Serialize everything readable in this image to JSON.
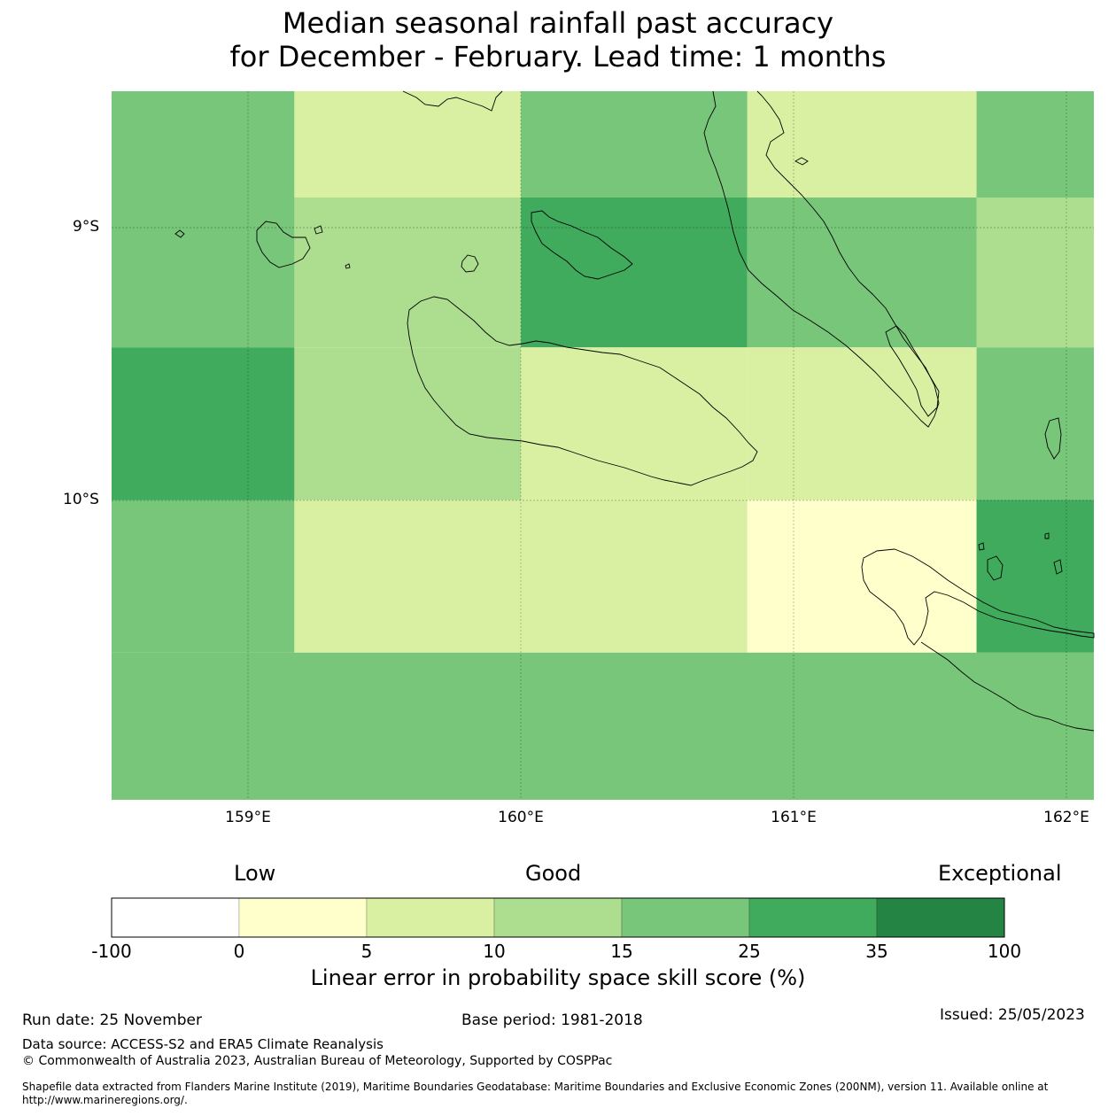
{
  "title": {
    "line1": "Median seasonal rainfall past accuracy",
    "line2": "for December - February. Lead time: 1 months"
  },
  "map": {
    "lat_labels": [
      "9°S",
      "10°S"
    ],
    "lon_labels": [
      "159°E",
      "160°E",
      "161°E",
      "162°E"
    ],
    "lon_range": [
      158.5,
      162.1
    ],
    "lat_range": [
      -8.5,
      -11.1
    ],
    "land_color": "none",
    "coast_color": "#000000",
    "grid_cells": [
      {
        "lon0": 158.5,
        "lon1": 159.17,
        "lat0": -8.5,
        "lat1": -8.89,
        "category": 4
      },
      {
        "lon0": 159.17,
        "lon1": 160.0,
        "lat0": -8.5,
        "lat1": -8.89,
        "category": 2
      },
      {
        "lon0": 160.0,
        "lon1": 160.83,
        "lat0": -8.5,
        "lat1": -8.89,
        "category": 4
      },
      {
        "lon0": 160.83,
        "lon1": 161.67,
        "lat0": -8.5,
        "lat1": -8.89,
        "category": 2
      },
      {
        "lon0": 161.67,
        "lon1": 162.1,
        "lat0": -8.5,
        "lat1": -8.89,
        "category": 4
      },
      {
        "lon0": 158.5,
        "lon1": 159.17,
        "lat0": -8.89,
        "lat1": -9.44,
        "category": 4
      },
      {
        "lon0": 159.17,
        "lon1": 160.0,
        "lat0": -8.89,
        "lat1": -9.44,
        "category": 3
      },
      {
        "lon0": 160.0,
        "lon1": 160.83,
        "lat0": -8.89,
        "lat1": -9.44,
        "category": 5
      },
      {
        "lon0": 160.83,
        "lon1": 161.67,
        "lat0": -8.89,
        "lat1": -9.44,
        "category": 4
      },
      {
        "lon0": 161.67,
        "lon1": 162.1,
        "lat0": -8.89,
        "lat1": -9.44,
        "category": 3
      },
      {
        "lon0": 158.5,
        "lon1": 159.17,
        "lat0": -9.44,
        "lat1": -10.0,
        "category": 5
      },
      {
        "lon0": 159.17,
        "lon1": 160.0,
        "lat0": -9.44,
        "lat1": -10.0,
        "category": 3
      },
      {
        "lon0": 160.0,
        "lon1": 160.83,
        "lat0": -9.44,
        "lat1": -10.0,
        "category": 2
      },
      {
        "lon0": 160.83,
        "lon1": 161.67,
        "lat0": -9.44,
        "lat1": -10.0,
        "category": 2
      },
      {
        "lon0": 161.67,
        "lon1": 162.1,
        "lat0": -9.44,
        "lat1": -10.0,
        "category": 4
      },
      {
        "lon0": 158.5,
        "lon1": 159.17,
        "lat0": -10.0,
        "lat1": -10.56,
        "category": 4
      },
      {
        "lon0": 159.17,
        "lon1": 160.0,
        "lat0": -10.0,
        "lat1": -10.56,
        "category": 2
      },
      {
        "lon0": 160.0,
        "lon1": 160.83,
        "lat0": -10.0,
        "lat1": -10.56,
        "category": 2
      },
      {
        "lon0": 160.83,
        "lon1": 161.67,
        "lat0": -10.0,
        "lat1": -10.56,
        "category": 1
      },
      {
        "lon0": 161.67,
        "lon1": 162.1,
        "lat0": -10.0,
        "lat1": -10.56,
        "category": 5
      },
      {
        "lon0": 158.5,
        "lon1": 162.1,
        "lat0": -10.56,
        "lat1": -11.1,
        "category": 4
      }
    ]
  },
  "legend": {
    "categories": [
      "Low",
      "Good",
      "Exceptional"
    ],
    "colors": [
      "#ffffff",
      "#ffffcc",
      "#d9f0a3",
      "#addd8e",
      "#78c679",
      "#41ab5d",
      "#238443"
    ],
    "ticks": [
      "-100",
      "0",
      "5",
      "10",
      "15",
      "25",
      "35",
      "100"
    ],
    "title": "Linear error in probability space skill score (%)"
  },
  "footer": {
    "run_date": "Run date: 25 November",
    "base_period": "Base period: 1981-2018",
    "issued": "Issued: 25/05/2023",
    "data_source": "Data source: ACCESS-S2 and ERA5 Climate Reanalysis",
    "copyright": "© Commonwealth of Australia 2023, Australian Bureau of Meteorology, Supported by COSPPac",
    "shapefile": "Shapefile data extracted from Flanders Marine Institute (2019), Maritime Boundaries Geodatabase: Maritime Boundaries and Exclusive Economic Zones (200NM), version 11. Available online at http://www.marineregions.org/."
  }
}
